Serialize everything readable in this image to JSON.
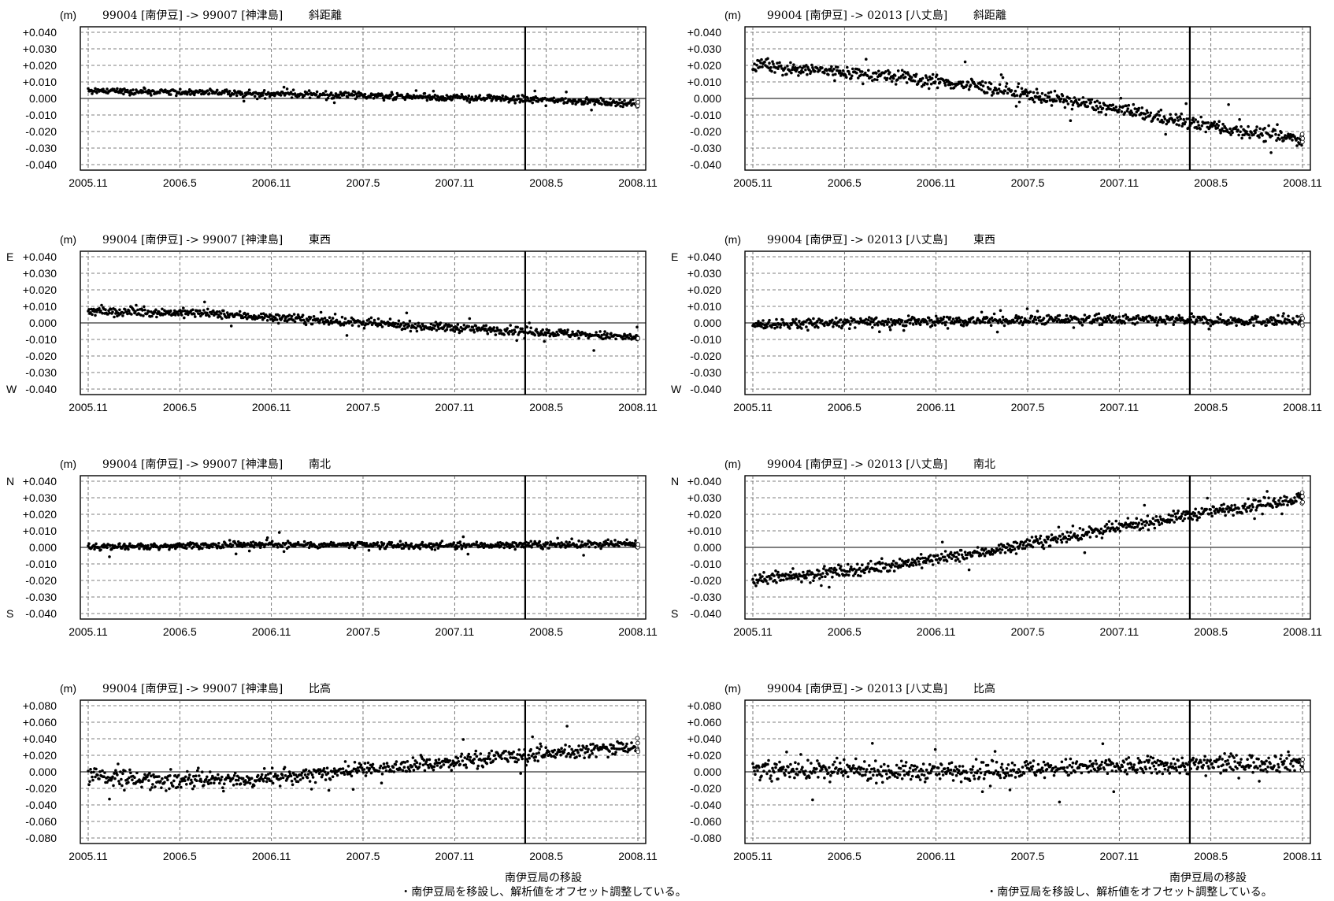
{
  "unit_label": "(m)",
  "x_ticks": [
    "2005.11",
    "2006.5",
    "2006.11",
    "2007.5",
    "2007.11",
    "2008.5",
    "2008.11"
  ],
  "relocation_date": "2008.2",
  "relocation_label": "南伊豆局の移設",
  "relocation_note": "・南伊豆局を移設し、解析値をオフセット調整している。",
  "colors": {
    "points": "#000000",
    "grid": "#555555"
  },
  "chart_data": [
    {
      "type": "scatter",
      "title_pair": "99004 [南伊豆] -> 99007 [神津島]",
      "component": "斜距離",
      "ylim": [
        -0.04,
        0.04
      ],
      "yticks": [
        "+0.040",
        "+0.030",
        "+0.020",
        "+0.010",
        "0.000",
        "-0.010",
        "-0.020",
        "-0.030",
        "-0.040"
      ],
      "dir_top": "",
      "dir_bottom": "",
      "trend": [
        [
          0,
          0.005
        ],
        [
          0.3,
          0.003
        ],
        [
          0.6,
          0.001
        ],
        [
          0.85,
          -0.001
        ],
        [
          1,
          -0.003
        ]
      ],
      "noise": 0.002
    },
    {
      "type": "scatter",
      "title_pair": "99004 [南伊豆] -> 02013 [八丈島]",
      "component": "斜距離",
      "ylim": [
        -0.04,
        0.04
      ],
      "yticks": [
        "+0.040",
        "+0.030",
        "+0.020",
        "+0.010",
        "0.000",
        "-0.010",
        "-0.020",
        "-0.030",
        "-0.040"
      ],
      "dir_top": "",
      "dir_bottom": "",
      "trend": [
        [
          0,
          0.02
        ],
        [
          0.2,
          0.015
        ],
        [
          0.4,
          0.008
        ],
        [
          0.6,
          -0.003
        ],
        [
          0.8,
          -0.015
        ],
        [
          1,
          -0.025
        ]
      ],
      "noise": 0.004
    },
    {
      "type": "scatter",
      "title_pair": "99004 [南伊豆] -> 99007 [神津島]",
      "component": "東西",
      "ylim": [
        -0.04,
        0.04
      ],
      "yticks": [
        "+0.040",
        "+0.030",
        "+0.020",
        "+0.010",
        "0.000",
        "-0.010",
        "-0.020",
        "-0.030",
        "-0.040"
      ],
      "dir_top": "E",
      "dir_bottom": "W",
      "trend": [
        [
          0,
          0.007
        ],
        [
          0.2,
          0.006
        ],
        [
          0.4,
          0.002
        ],
        [
          0.6,
          -0.002
        ],
        [
          0.8,
          -0.005
        ],
        [
          1,
          -0.009
        ]
      ],
      "noise": 0.0025
    },
    {
      "type": "scatter",
      "title_pair": "99004 [南伊豆] -> 02013 [八丈島]",
      "component": "東西",
      "ylim": [
        -0.04,
        0.04
      ],
      "yticks": [
        "+0.040",
        "+0.030",
        "+0.020",
        "+0.010",
        "0.000",
        "-0.010",
        "-0.020",
        "-0.030",
        "-0.040"
      ],
      "dir_top": "E",
      "dir_bottom": "W",
      "trend": [
        [
          0,
          -0.001
        ],
        [
          0.3,
          0.001
        ],
        [
          0.6,
          0.002
        ],
        [
          1,
          0.001
        ]
      ],
      "noise": 0.003
    },
    {
      "type": "scatter",
      "title_pair": "99004 [南伊豆] -> 99007 [神津島]",
      "component": "南北",
      "ylim": [
        -0.04,
        0.04
      ],
      "yticks": [
        "+0.040",
        "+0.030",
        "+0.020",
        "+0.010",
        "0.000",
        "-0.010",
        "-0.020",
        "-0.030",
        "-0.040"
      ],
      "dir_top": "N",
      "dir_bottom": "S",
      "trend": [
        [
          0,
          0
        ],
        [
          0.3,
          0.002
        ],
        [
          0.6,
          0.001
        ],
        [
          1,
          0.002
        ]
      ],
      "noise": 0.002
    },
    {
      "type": "scatter",
      "title_pair": "99004 [南伊豆] -> 02013 [八丈島]",
      "component": "南北",
      "ylim": [
        -0.04,
        0.04
      ],
      "yticks": [
        "+0.040",
        "+0.030",
        "+0.020",
        "+0.010",
        "0.000",
        "-0.010",
        "-0.020",
        "-0.030",
        "-0.040"
      ],
      "dir_top": "N",
      "dir_bottom": "S",
      "trend": [
        [
          0,
          -0.02
        ],
        [
          0.2,
          -0.013
        ],
        [
          0.4,
          -0.004
        ],
        [
          0.6,
          0.008
        ],
        [
          0.8,
          0.02
        ],
        [
          1,
          0.03
        ]
      ],
      "noise": 0.0035
    },
    {
      "type": "scatter",
      "title_pair": "99004 [南伊豆] -> 99007 [神津島]",
      "component": "比高",
      "ylim": [
        -0.08,
        0.08
      ],
      "yticks": [
        "+0.080",
        "+0.060",
        "+0.040",
        "+0.020",
        "0.000",
        "-0.020",
        "-0.040",
        "-0.060",
        "-0.080"
      ],
      "dir_top": "",
      "dir_bottom": "",
      "trend": [
        [
          0,
          -0.005
        ],
        [
          0.15,
          -0.01
        ],
        [
          0.3,
          -0.01
        ],
        [
          0.45,
          0
        ],
        [
          0.6,
          0.008
        ],
        [
          0.8,
          0.02
        ],
        [
          1,
          0.032
        ]
      ],
      "noise": 0.009
    },
    {
      "type": "scatter",
      "title_pair": "99004 [南伊豆] -> 02013 [八丈島]",
      "component": "比高",
      "ylim": [
        -0.08,
        0.08
      ],
      "yticks": [
        "+0.080",
        "+0.060",
        "+0.040",
        "+0.020",
        "0.000",
        "-0.020",
        "-0.040",
        "-0.060",
        "-0.080"
      ],
      "dir_top": "",
      "dir_bottom": "",
      "trend": [
        [
          0,
          0.003
        ],
        [
          0.3,
          0
        ],
        [
          0.6,
          0.005
        ],
        [
          1,
          0.012
        ]
      ],
      "noise": 0.011
    }
  ]
}
